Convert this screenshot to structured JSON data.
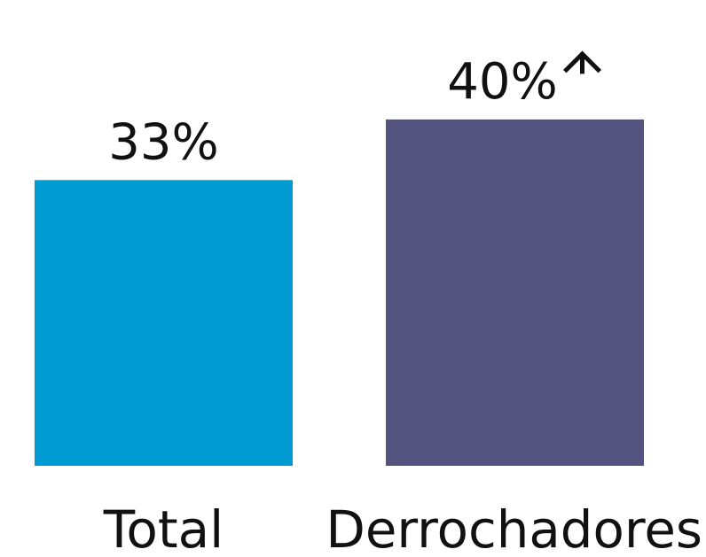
{
  "chart_data": {
    "type": "bar",
    "categories": [
      "Total",
      "Derrochadores"
    ],
    "values": [
      33,
      40
    ],
    "data_labels": [
      "33%",
      "40%"
    ],
    "annotations": [
      {
        "category": "Derrochadores",
        "icon": "arrow-up-icon"
      }
    ],
    "colors": [
      "#009BD2",
      "#54527F"
    ],
    "title": "",
    "xlabel": "",
    "ylabel": "",
    "ylim": [
      0,
      45
    ],
    "grid": false,
    "legend": "none"
  }
}
